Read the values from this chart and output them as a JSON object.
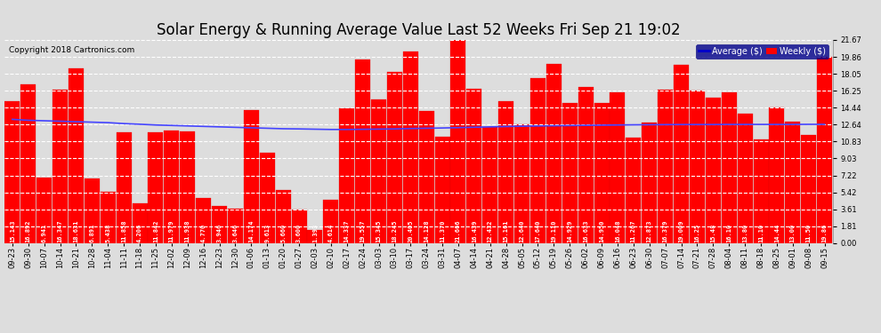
{
  "title": "Solar Energy & Running Average Value Last 52 Weeks Fri Sep 21 19:02",
  "copyright": "Copyright 2018 Cartronics.com",
  "ymax": 21.67,
  "ymin": 0.0,
  "bar_color": "#FF0000",
  "bar_edge_color": "#DD0000",
  "avg_line_color": "#4444FF",
  "background_color": "#DDDDDD",
  "plot_bg_color": "#DDDDDD",
  "grid_color": "#FFFFFF",
  "categories": [
    "09-23",
    "09-30",
    "10-07",
    "10-14",
    "10-21",
    "10-28",
    "11-04",
    "11-11",
    "11-18",
    "11-25",
    "12-02",
    "12-09",
    "12-16",
    "12-23",
    "12-30",
    "01-06",
    "01-13",
    "01-20",
    "01-27",
    "02-03",
    "02-10",
    "02-17",
    "02-24",
    "03-03",
    "03-10",
    "03-17",
    "03-24",
    "03-31",
    "04-07",
    "04-14",
    "04-21",
    "04-28",
    "05-05",
    "05-12",
    "05-19",
    "05-26",
    "06-02",
    "06-09",
    "06-16",
    "06-23",
    "06-30",
    "07-07",
    "07-14",
    "07-21",
    "07-28",
    "08-04",
    "08-11",
    "08-18",
    "08-25",
    "09-01",
    "09-08",
    "09-15"
  ],
  "values": [
    15.143,
    16.892,
    6.941,
    16.347,
    18.631,
    6.891,
    5.438,
    11.858,
    4.206,
    11.842,
    11.979,
    11.938,
    4.77,
    3.946,
    3.646,
    14.174,
    9.613,
    5.66,
    3.6,
    1.393,
    4.614,
    14.337,
    19.557,
    15.345,
    18.245,
    20.405,
    14.128,
    11.37,
    21.666,
    16.439,
    12.432,
    15.161,
    12.64,
    17.64,
    19.11,
    14.929,
    16.633,
    14.95,
    16.048,
    11.267,
    12.873,
    16.379,
    19.009,
    16.25,
    15.48,
    16.1,
    13.8,
    11.1,
    14.44,
    13.0,
    11.5,
    19.86
  ],
  "avg_values": [
    13.2,
    13.1,
    13.05,
    13.0,
    12.95,
    12.9,
    12.85,
    12.75,
    12.68,
    12.6,
    12.55,
    12.5,
    12.45,
    12.4,
    12.35,
    12.3,
    12.25,
    12.2,
    12.18,
    12.15,
    12.12,
    12.12,
    12.14,
    12.16,
    12.18,
    12.22,
    12.25,
    12.28,
    12.32,
    12.36,
    12.4,
    12.44,
    12.47,
    12.5,
    12.52,
    12.54,
    12.56,
    12.58,
    12.6,
    12.62,
    12.63,
    12.64,
    12.65,
    12.65,
    12.65,
    12.66,
    12.66,
    12.66,
    12.66,
    12.66,
    12.67,
    12.67
  ],
  "yticks": [
    0.0,
    1.81,
    3.61,
    5.42,
    7.22,
    9.03,
    10.83,
    12.64,
    14.44,
    16.25,
    18.05,
    19.86,
    21.67
  ],
  "legend_avg_color": "#0000CC",
  "legend_avg_label": "Average ($)",
  "legend_weekly_color": "#FF0000",
  "legend_weekly_label": "Weekly ($)",
  "title_fontsize": 12,
  "tick_fontsize": 6,
  "bar_label_fontsize": 5,
  "bar_values": [
    "15.143",
    "16.892",
    "6.941",
    "16.347",
    "18.631",
    "6.891",
    "5.438",
    "11.858",
    "4.206",
    "11.842",
    "11.979",
    "11.938",
    "4.770",
    "3.946",
    "3.646",
    "14.174",
    "9.613",
    "5.660",
    "3.600",
    "1.393",
    "4.614",
    "14.337",
    "19.557",
    "15.345",
    "18.245",
    "20.405",
    "14.128",
    "11.370",
    "21.666",
    "16.439",
    "12.432",
    "15.161",
    "12.640",
    "17.640",
    "19.110",
    "14.929",
    "16.633",
    "14.950",
    "16.048",
    "11.267",
    "12.873",
    "16.379",
    "19.009",
    "16.25",
    "15.48",
    "16.10",
    "13.80",
    "11.10",
    "14.44",
    "13.00",
    "11.50",
    "19.86"
  ]
}
